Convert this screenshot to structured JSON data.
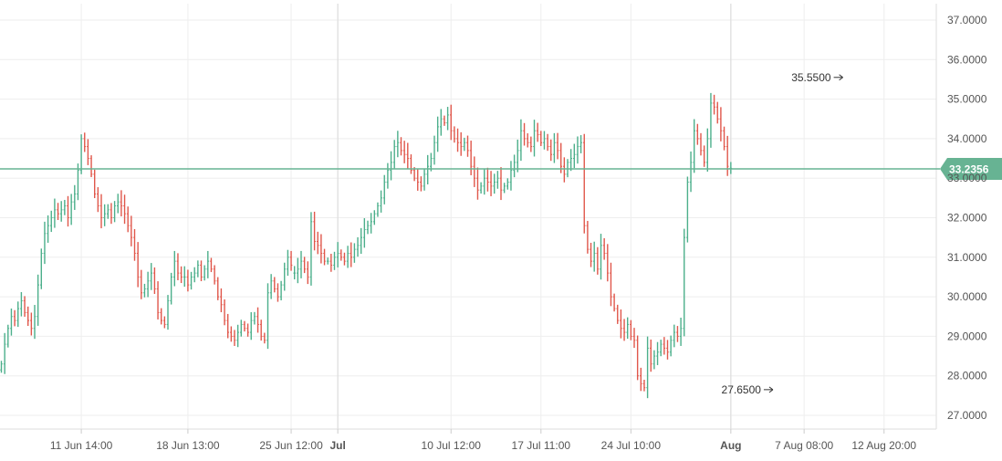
{
  "chart_data": {
    "type": "candlestick",
    "title": "",
    "xlabel": "",
    "ylabel": "",
    "ylim": [
      26.7,
      37.4
    ],
    "y_ticks": [
      "27.0000",
      "28.0000",
      "29.0000",
      "30.0000",
      "31.0000",
      "32.0000",
      "33.0000",
      "34.0000",
      "35.0000",
      "36.0000",
      "37.0000"
    ],
    "x_labels": [
      {
        "label": "11 Jun 14:00",
        "bar": 24
      },
      {
        "label": "18 Jun 13:00",
        "bar": 56
      },
      {
        "label": "25 Jun 12:00",
        "bar": 87
      },
      {
        "label": "Jul",
        "bar": 101
      },
      {
        "label": "10 Jul 12:00",
        "bar": 135
      },
      {
        "label": "17 Jul 11:00",
        "bar": 162
      },
      {
        "label": "24 Jul 10:00",
        "bar": 189
      },
      {
        "label": "Aug",
        "bar": 219
      },
      {
        "label": "7 Aug 08:00",
        "bar": 241
      },
      {
        "label": "12 Aug 20:00",
        "bar": 265
      }
    ],
    "month_separators": [
      101,
      219
    ],
    "grid": true,
    "current_price": 33.2356,
    "current_price_label": "33.2356",
    "annotations": [
      {
        "text": "35.5500",
        "bar": 254,
        "value": 35.55
      },
      {
        "text": "27.6500",
        "bar": 233,
        "value": 27.65
      }
    ],
    "colors": {
      "up": "#4caf8b",
      "down": "#e0574b",
      "price_line": "#67b393",
      "grid": "#eeeeee",
      "axis_text": "#555555"
    },
    "closes": [
      28.3,
      28.8,
      29.2,
      29.5,
      29.4,
      29.7,
      29.9,
      29.6,
      29.4,
      29.2,
      29.5,
      30.3,
      31.1,
      31.6,
      31.8,
      32.0,
      32.2,
      32.1,
      32.2,
      32.3,
      32.0,
      32.4,
      32.6,
      33.2,
      34.0,
      33.8,
      33.5,
      33.1,
      32.6,
      32.3,
      32.0,
      32.1,
      32.2,
      32.0,
      32.3,
      32.4,
      32.3,
      32.1,
      31.8,
      31.5,
      31.1,
      30.5,
      30.1,
      30.2,
      30.4,
      30.6,
      30.2,
      29.6,
      29.4,
      29.3,
      29.9,
      30.5,
      30.9,
      30.6,
      30.5,
      30.5,
      30.3,
      30.5,
      30.6,
      30.8,
      30.5,
      30.7,
      30.9,
      30.7,
      30.4,
      30.0,
      29.8,
      29.4,
      29.1,
      29.0,
      28.9,
      29.1,
      29.3,
      29.2,
      29.1,
      29.4,
      29.5,
      29.3,
      29.0,
      28.9,
      30.1,
      30.4,
      30.2,
      30.0,
      30.3,
      30.7,
      31.0,
      30.8,
      30.6,
      30.7,
      30.9,
      30.7,
      30.5,
      31.9,
      31.4,
      31.3,
      31.1,
      30.9,
      30.9,
      30.8,
      31.0,
      31.1,
      31.0,
      30.9,
      31.1,
      31.0,
      31.2,
      31.3,
      31.5,
      31.7,
      31.8,
      31.9,
      32.1,
      32.3,
      32.5,
      32.9,
      33.2,
      33.4,
      33.8,
      33.9,
      33.7,
      33.6,
      33.5,
      33.2,
      33.0,
      32.9,
      32.8,
      33.1,
      33.3,
      33.5,
      33.9,
      34.3,
      34.5,
      34.4,
      34.6,
      34.2,
      34.0,
      33.9,
      33.8,
      33.9,
      33.7,
      33.3,
      33.0,
      32.7,
      32.8,
      33.0,
      32.9,
      32.8,
      32.9,
      33.0,
      32.7,
      32.8,
      32.9,
      33.2,
      33.4,
      33.7,
      34.2,
      34.0,
      33.9,
      33.8,
      34.2,
      34.1,
      33.9,
      34.0,
      33.8,
      33.6,
      33.9,
      33.7,
      33.3,
      33.1,
      33.4,
      33.5,
      33.6,
      33.8,
      33.9,
      31.8,
      31.2,
      30.9,
      31.1,
      30.7,
      31.3,
      31.1,
      30.6,
      30.0,
      29.7,
      29.4,
      29.2,
      29.1,
      29.3,
      29.0,
      28.9,
      28.0,
      27.8,
      27.7,
      28.7,
      28.3,
      28.5,
      28.6,
      28.8,
      28.7,
      28.6,
      28.9,
      29.1,
      29.0,
      29.2,
      31.5,
      32.9,
      33.4,
      34.2,
      34.0,
      33.7,
      33.4,
      34.0,
      34.9,
      34.8,
      34.5,
      34.2,
      33.8,
      33.3,
      33.25
    ]
  }
}
